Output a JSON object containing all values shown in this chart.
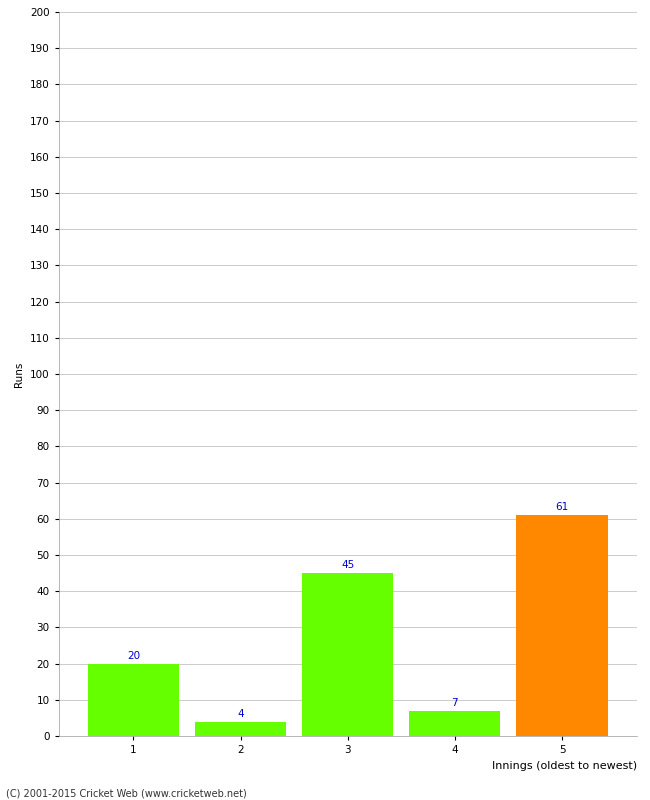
{
  "categories": [
    "1",
    "2",
    "3",
    "4",
    "5"
  ],
  "values": [
    20,
    4,
    45,
    7,
    61
  ],
  "bar_colors": [
    "#66ff00",
    "#66ff00",
    "#66ff00",
    "#66ff00",
    "#ff8800"
  ],
  "ylabel": "Runs",
  "xlabel": "Innings (oldest to newest)",
  "ylim": [
    0,
    200
  ],
  "yticks": [
    0,
    10,
    20,
    30,
    40,
    50,
    60,
    70,
    80,
    90,
    100,
    110,
    120,
    130,
    140,
    150,
    160,
    170,
    180,
    190,
    200
  ],
  "annotation_color": "#0000cc",
  "annotation_fontsize": 7.5,
  "ylabel_fontsize": 7.5,
  "xlabel_fontsize": 8,
  "tick_fontsize": 7.5,
  "background_color": "#ffffff",
  "footer": "(C) 2001-2015 Cricket Web (www.cricketweb.net)",
  "grid_color": "#cccccc",
  "bar_width": 0.85
}
